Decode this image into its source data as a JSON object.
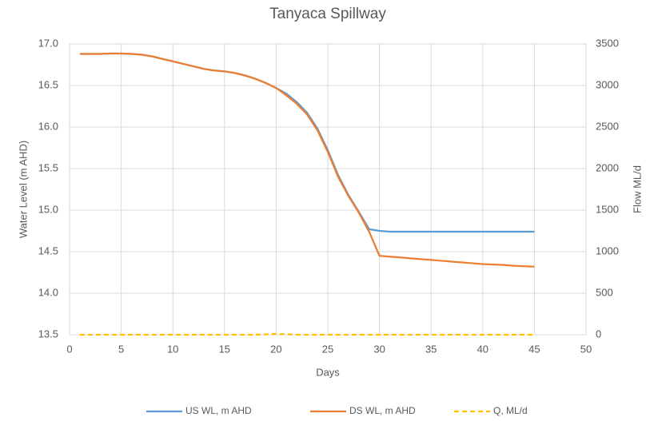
{
  "chart_data": {
    "type": "line",
    "title": "Tanyaca Spillway",
    "x_label": "Days",
    "y_label": "Water Level (m AHD)",
    "y2_label": "Flow ML/d",
    "x": [
      1,
      2,
      3,
      4,
      5,
      6,
      7,
      8,
      9,
      10,
      11,
      12,
      13,
      14,
      15,
      16,
      17,
      18,
      19,
      20,
      21,
      22,
      23,
      24,
      25,
      26,
      27,
      28,
      29,
      30,
      31,
      32,
      33,
      34,
      35,
      36,
      37,
      38,
      39,
      40,
      41,
      42,
      43,
      44,
      45
    ],
    "series": [
      {
        "name": "US WL, m AHD",
        "color": "#5b9bd5",
        "dashed": false,
        "values": [
          16.88,
          16.88,
          16.88,
          16.885,
          16.885,
          16.88,
          16.87,
          16.85,
          16.82,
          16.79,
          16.76,
          16.73,
          16.7,
          16.68,
          16.67,
          16.65,
          16.62,
          16.58,
          16.53,
          16.47,
          16.4,
          16.3,
          16.17,
          15.98,
          15.72,
          15.42,
          15.18,
          14.98,
          14.77,
          14.75,
          14.74,
          14.74,
          14.74,
          14.74,
          14.74,
          14.74,
          14.74,
          14.74,
          14.74,
          14.74,
          14.74,
          14.74,
          14.74,
          14.74,
          14.74
        ]
      },
      {
        "name": "DS WL, m AHD",
        "color": "#ed7d31",
        "dashed": false,
        "values": [
          16.88,
          16.88,
          16.88,
          16.885,
          16.885,
          16.88,
          16.87,
          16.85,
          16.82,
          16.79,
          16.76,
          16.73,
          16.7,
          16.68,
          16.67,
          16.65,
          16.62,
          16.58,
          16.53,
          16.47,
          16.38,
          16.28,
          16.15,
          15.96,
          15.7,
          15.4,
          15.17,
          14.97,
          14.74,
          14.45,
          14.44,
          14.43,
          14.42,
          14.41,
          14.4,
          14.39,
          14.38,
          14.37,
          14.36,
          14.35,
          14.345,
          14.34,
          14.33,
          14.325,
          14.32
        ]
      },
      {
        "name": "Q, ML/d",
        "color": "#ffc000",
        "dashed": true,
        "axis": "y2",
        "values": [
          0,
          0,
          0,
          0,
          0,
          0,
          0,
          0,
          0,
          0,
          0,
          0,
          0,
          0,
          0,
          0,
          0,
          0,
          5,
          10,
          5,
          0,
          0,
          0,
          0,
          0,
          0,
          0,
          0,
          0,
          0,
          0,
          0,
          0,
          0,
          0,
          0,
          0,
          0,
          0,
          0,
          0,
          0,
          0,
          0
        ]
      }
    ],
    "xlim": [
      0,
      50
    ],
    "xticks": [
      0,
      5,
      10,
      15,
      20,
      25,
      30,
      35,
      40,
      45,
      50
    ],
    "ylim": [
      13.5,
      17
    ],
    "yticks": [
      13.5,
      {
        "value": 14,
        "label": "14.0"
      },
      14.5,
      {
        "value": 15,
        "label": "15.0"
      },
      15.5,
      {
        "value": 16,
        "label": "16.0"
      },
      16.5,
      {
        "value": 17,
        "label": "17.0"
      }
    ],
    "y2lim": [
      0,
      3500
    ],
    "y2ticks": [
      0,
      500,
      1000,
      1500,
      2000,
      2500,
      3000,
      3500
    ],
    "grid": true,
    "legend": "bottom"
  }
}
